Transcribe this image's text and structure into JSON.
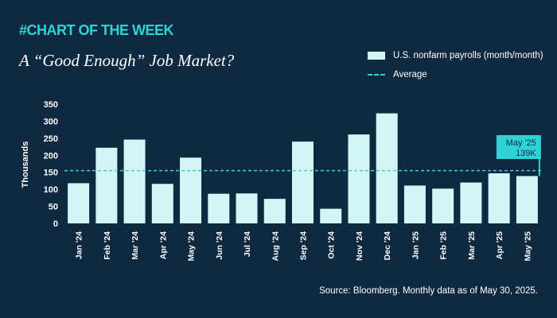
{
  "header": {
    "kicker": "#CHART OF THE WEEK",
    "title": "A “Good Enough” Job Market?"
  },
  "legend": {
    "bars_label": "U.S. nonfarm payrolls (month/month)",
    "average_label": "Average"
  },
  "callout": {
    "line1": "May '25",
    "line2": "139K"
  },
  "source": "Source: Bloomberg. Monthly data as of May 30, 2025.",
  "colors": {
    "background": "#0f2a40",
    "bar": "#d4f5f6",
    "accent": "#2fd3d6"
  },
  "chart_data": {
    "type": "bar",
    "categories": [
      "Jan '24",
      "Feb '24",
      "Mar '24",
      "Apr '24",
      "May '24",
      "Jun '24",
      "Jul '24",
      "Aug '24",
      "Sep '24",
      "Oct '24",
      "Nov '24",
      "Dec '24",
      "Jan '25",
      "Feb '25",
      "Mar '25",
      "Apr '25",
      "May '25"
    ],
    "values": [
      118,
      222,
      246,
      116,
      193,
      87,
      88,
      72,
      240,
      43,
      261,
      323,
      111,
      102,
      120,
      147,
      139
    ],
    "average": 155,
    "title": "A “Good Enough” Job Market?",
    "xlabel": "",
    "ylabel": "Thousands",
    "ylim": [
      0,
      350
    ],
    "yticks": [
      0,
      50,
      100,
      150,
      200,
      250,
      300,
      350
    ],
    "grid": false,
    "legend_position": "top-right"
  }
}
